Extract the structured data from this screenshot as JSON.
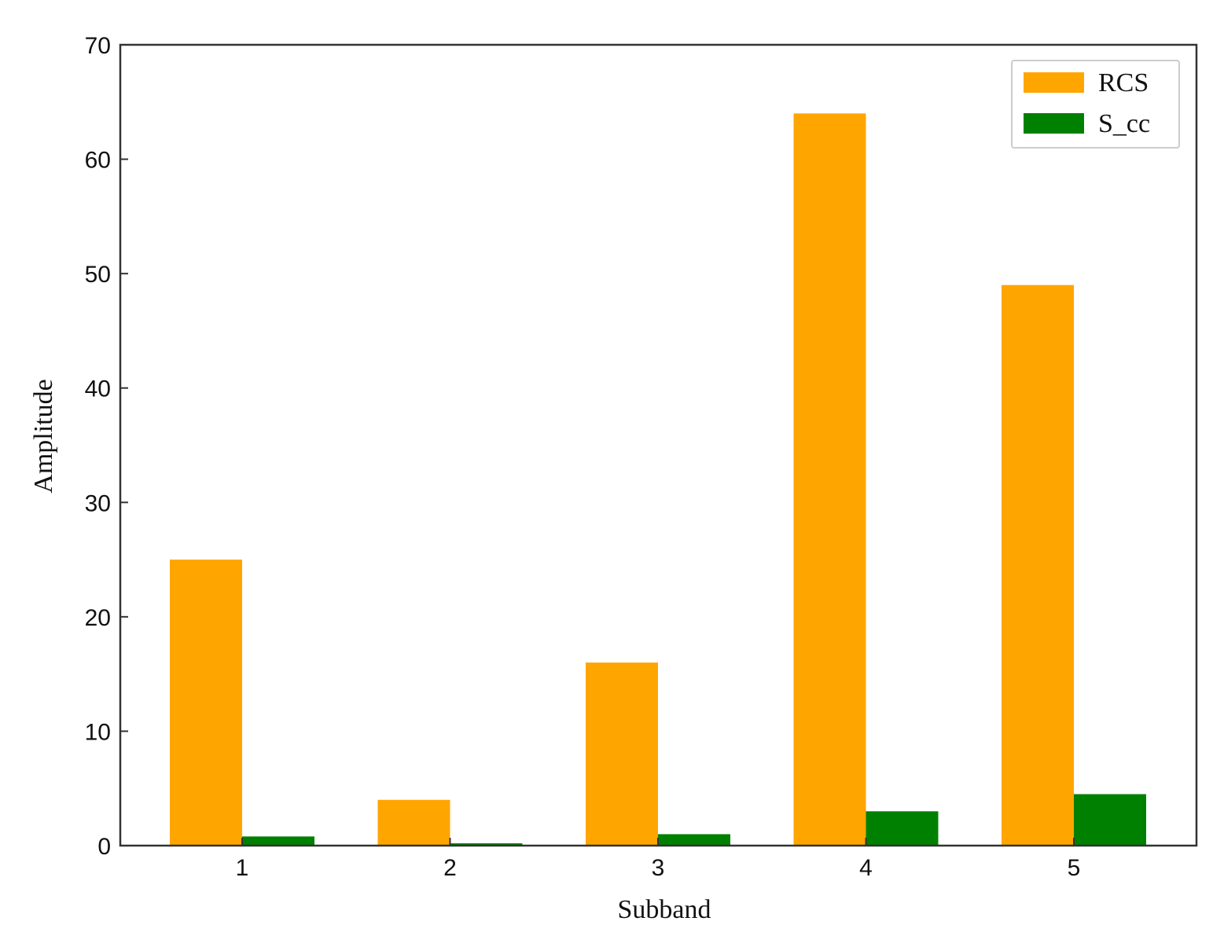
{
  "chart_data": {
    "type": "bar",
    "categories": [
      "1",
      "2",
      "3",
      "4",
      "5"
    ],
    "series": [
      {
        "name": "RCS",
        "color": "#ffa500",
        "values": [
          25,
          4,
          16,
          64,
          49
        ]
      },
      {
        "name": "S_cc",
        "color": "#008000",
        "values": [
          0.8,
          0.2,
          1.0,
          3.0,
          4.5
        ]
      }
    ],
    "title": "",
    "xlabel": "Subband",
    "ylabel": "Amplitude",
    "ylim": [
      0,
      70
    ],
    "yticks": [
      "0",
      "10",
      "20",
      "30",
      "40",
      "50",
      "60",
      "70"
    ],
    "grid": false,
    "legend_position": "top-right"
  }
}
